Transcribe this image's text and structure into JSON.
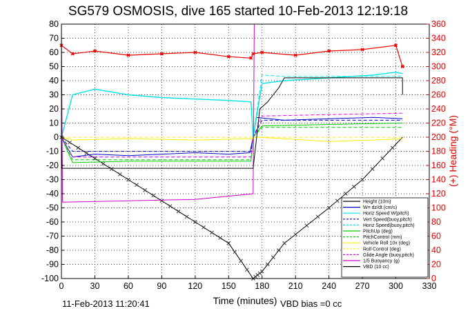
{
  "chart_data": {
    "type": "line",
    "title": "SG579 OSMOSIS, dive 165 started 10-Feb-2013 12:19:18",
    "xlabel": "Time (minutes)",
    "ylabel_right": "(+) Heading (°M)",
    "xlim": [
      0,
      330
    ],
    "ylim": [
      -100,
      80
    ],
    "ylim_right": [
      0,
      360
    ],
    "grid": true,
    "legend_position": "lower-right",
    "x_ticks": [
      "0",
      "30",
      "60",
      "90",
      "120",
      "150",
      "180",
      "210",
      "240",
      "270",
      "300",
      "330"
    ],
    "y_ticks": [
      "80",
      "70",
      "60",
      "50",
      "40",
      "30",
      "20",
      "10",
      "0",
      "-10",
      "-20",
      "-30",
      "-40",
      "-50",
      "-60",
      "-70",
      "-80",
      "-90",
      "-100"
    ],
    "y_right_ticks": [
      "360",
      "340",
      "320",
      "300",
      "280",
      "260",
      "240",
      "220",
      "200",
      "180",
      "160",
      "140",
      "120",
      "100",
      "80",
      "60",
      "40",
      "20",
      "0"
    ],
    "footer_date": "11-Feb-2013 11:20:41",
    "footer_note": "VBD bias =0 cc",
    "series": [
      {
        "name": "Height (10m)",
        "color": "#000000",
        "style": "solid",
        "x": [
          0,
          30,
          60,
          90,
          120,
          150,
          172,
          180,
          200,
          240,
          270,
          306
        ],
        "y": [
          0,
          -15,
          -30,
          -45,
          -60,
          -75,
          -100,
          -95,
          -75,
          -50,
          -30,
          0
        ]
      },
      {
        "name": "W= dz/dt (cm/s)",
        "color": "#0000cc",
        "style": "solid",
        "x": [
          0,
          10,
          30,
          60,
          90,
          120,
          150,
          169,
          172,
          175,
          200,
          240,
          280,
          306
        ],
        "y": [
          0,
          -14,
          -12,
          -13,
          -12,
          -11,
          -12,
          -11,
          0,
          14,
          12,
          13,
          14,
          13
        ]
      },
      {
        "name": "Horiz Speed W(pitch)",
        "color": "#00e5e5",
        "style": "solid",
        "x": [
          0,
          10,
          30,
          60,
          90,
          120,
          150,
          170,
          172,
          180,
          200,
          240,
          280,
          300,
          306
        ],
        "y": [
          0,
          30,
          34,
          30,
          28,
          27,
          26,
          25,
          0,
          38,
          40,
          42,
          44,
          46,
          45
        ]
      },
      {
        "name": "Vert Speed(buoy,pitch)",
        "color": "#0000cc",
        "style": "dashed",
        "x": [
          0,
          10,
          60,
          120,
          170,
          172,
          180,
          240,
          306
        ],
        "y": [
          0,
          -10,
          -10,
          -10,
          -10,
          0,
          12,
          12,
          12
        ]
      },
      {
        "name": "Horiz Speed(buoy,pitch)",
        "color": "#00e5e5",
        "style": "dashed",
        "x": [
          0,
          10,
          60,
          120,
          170,
          172,
          180,
          200,
          240,
          306
        ],
        "y": [
          0,
          -14,
          -14,
          -14,
          -14,
          0,
          44,
          43,
          43,
          43
        ]
      },
      {
        "name": "PitchUp (deg)",
        "color": "#00cc00",
        "style": "solid",
        "x": [
          0,
          10,
          60,
          120,
          170,
          172,
          180,
          240,
          306
        ],
        "y": [
          0,
          -18,
          -17,
          -17,
          -17,
          0,
          8,
          9,
          10
        ]
      },
      {
        "name": "PitchControl (mm)",
        "color": "#00cc00",
        "style": "dashed",
        "x": [
          0,
          10,
          60,
          120,
          170,
          172,
          180,
          240,
          306
        ],
        "y": [
          0,
          -16,
          -16,
          -16,
          -16,
          0,
          7,
          7,
          7
        ]
      },
      {
        "name": "Vehicle Roll 10x (deg)",
        "color": "#ffee00",
        "style": "solid",
        "x": [
          0,
          10,
          60,
          120,
          170,
          175,
          200,
          240,
          280,
          306
        ],
        "y": [
          0,
          -2,
          -1,
          -2,
          -1,
          0,
          -1,
          -3,
          -2,
          -1
        ]
      },
      {
        "name": "Roll Control (deg)",
        "color": "#ffee00",
        "style": "dashed",
        "x": [
          0,
          306
        ],
        "y": [
          0,
          0
        ]
      },
      {
        "name": "Glide Angle (buoy,pitch)",
        "color": "#ee00ee",
        "style": "dashed",
        "x": [
          0,
          10,
          60,
          120,
          170,
          172,
          180,
          240,
          306
        ],
        "y": [
          0,
          -14,
          -14,
          -14,
          -14,
          0,
          15,
          16,
          17
        ]
      },
      {
        "name": "1/5 Buoyancy (g)",
        "color": "#cc00cc",
        "style": "solid",
        "x": [
          0,
          1,
          60,
          120,
          172,
          173,
          180,
          200
        ],
        "y": [
          80,
          -46,
          -45,
          -44,
          -40,
          80,
          80,
          80
        ]
      },
      {
        "name": "VBD (10 cc)",
        "color": "#000000",
        "style": "solid",
        "x": [
          0,
          0.5,
          60,
          120,
          172,
          178,
          185,
          190,
          195,
          200,
          306,
          306
        ],
        "y": [
          0,
          -22,
          -22,
          -22,
          -22,
          20,
          25,
          30,
          35,
          42,
          42,
          30
        ]
      },
      {
        "name": "Heading",
        "axis": "right",
        "color": "#ee0000",
        "style": "markers",
        "x": [
          0,
          10,
          30,
          60,
          90,
          120,
          150,
          170,
          172,
          180,
          210,
          240,
          270,
          300,
          306
        ],
        "y": [
          330,
          318,
          322,
          316,
          318,
          320,
          314,
          312,
          318,
          320,
          316,
          322,
          324,
          330,
          300
        ]
      }
    ]
  }
}
